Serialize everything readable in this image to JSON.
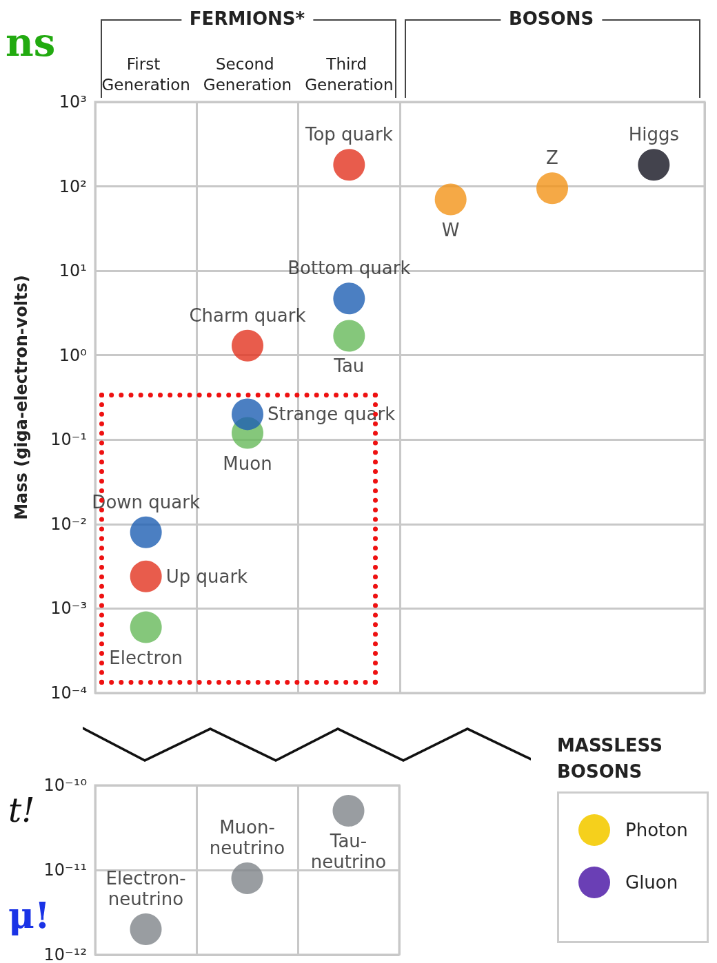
{
  "chart_data": [
    {
      "type": "scatter",
      "ylabel": "Mass (giga-electron-volts)",
      "categories": [
        "First Generation",
        "Second Generation",
        "Third Generation",
        null,
        null,
        null
      ],
      "log": "y",
      "grid": true,
      "marker": "circle",
      "ylim": [
        0.0001,
        1000
      ],
      "yticks": [
        {
          "value": 0.0001,
          "label": "10⁻⁴"
        },
        {
          "value": 0.001,
          "label": "10⁻³"
        },
        {
          "value": 0.01,
          "label": "10⁻²"
        },
        {
          "value": 0.1,
          "label": "10⁻¹"
        },
        {
          "value": 1,
          "label": "10⁰"
        },
        {
          "value": 10,
          "label": "10¹"
        },
        {
          "value": 100,
          "label": "10²"
        },
        {
          "value": 1000,
          "label": "10³"
        }
      ],
      "annotations": [
        "FERMIONS*",
        "BOSONS",
        "ns"
      ],
      "series": [
        {
          "name": "Electron",
          "color": "#66b95a",
          "x": [
            "First Generation"
          ],
          "values": [
            0.0006
          ]
        },
        {
          "name": "Up quark",
          "color": "#e2331f",
          "x": [
            "First Generation"
          ],
          "values": [
            0.0024
          ]
        },
        {
          "name": "Down quark",
          "color": "#1e5fb3",
          "x": [
            "First Generation"
          ],
          "values": [
            0.008
          ]
        },
        {
          "name": "Muon",
          "color": "#66b95a",
          "x": [
            "Second Generation"
          ],
          "values": [
            0.12
          ]
        },
        {
          "name": "Strange quark",
          "color": "#1e5fb3",
          "x": [
            "Second Generation"
          ],
          "values": [
            0.2
          ]
        },
        {
          "name": "Charm quark",
          "color": "#e2331f",
          "x": [
            "Second Generation"
          ],
          "values": [
            1.3
          ]
        },
        {
          "name": "Tau",
          "color": "#66b95a",
          "x": [
            "Third Generation"
          ],
          "values": [
            1.7
          ]
        },
        {
          "name": "Bottom quark",
          "color": "#1e5fb3",
          "x": [
            "Third Generation"
          ],
          "values": [
            4.7
          ]
        },
        {
          "name": "Top quark",
          "color": "#e2331f",
          "x": [
            "Third Generation"
          ],
          "values": [
            180
          ]
        },
        {
          "name": "W",
          "color": "#f29418",
          "values": [
            null,
            null,
            null,
            70,
            null,
            null
          ]
        },
        {
          "name": "Z",
          "color": "#f29418",
          "values": [
            null,
            null,
            null,
            null,
            95,
            null
          ]
        },
        {
          "name": "Higgs",
          "color": "#141420",
          "values": [
            null,
            null,
            null,
            null,
            null,
            180
          ]
        }
      ]
    },
    {
      "type": "scatter",
      "categories": [
        "First Generation",
        "Second Generation",
        "Third Generation"
      ],
      "log": "y",
      "grid": true,
      "marker": "circle",
      "tick_labels": "y",
      "ylim": [
        1e-12,
        1e-10
      ],
      "yticks": [
        {
          "value": 1e-12,
          "label": "10⁻¹²"
        },
        {
          "value": 1e-11,
          "label": "10⁻¹¹"
        },
        {
          "value": 1e-10,
          "label": "10⁻¹⁰"
        }
      ],
      "annotations": [
        "t!",
        "μ!"
      ],
      "series": [
        {
          "name": "Electron-neutrino",
          "color": "#80858a",
          "x": [
            "First Generation"
          ],
          "values": [
            2e-12
          ]
        },
        {
          "name": "Muon-neutrino",
          "color": "#80858a",
          "x": [
            "Second Generation"
          ],
          "values": [
            8e-12
          ]
        },
        {
          "name": "Tau-neutrino",
          "color": "#80858a",
          "x": [
            "Third Generation"
          ],
          "values": [
            5e-11
          ]
        }
      ]
    },
    {
      "type": "other",
      "title": "MASSLESS BOSONS",
      "categories": [
        "Photon",
        "Gluon"
      ],
      "colors": [
        "#f5d01c",
        "#6a3fb5"
      ]
    }
  ]
}
